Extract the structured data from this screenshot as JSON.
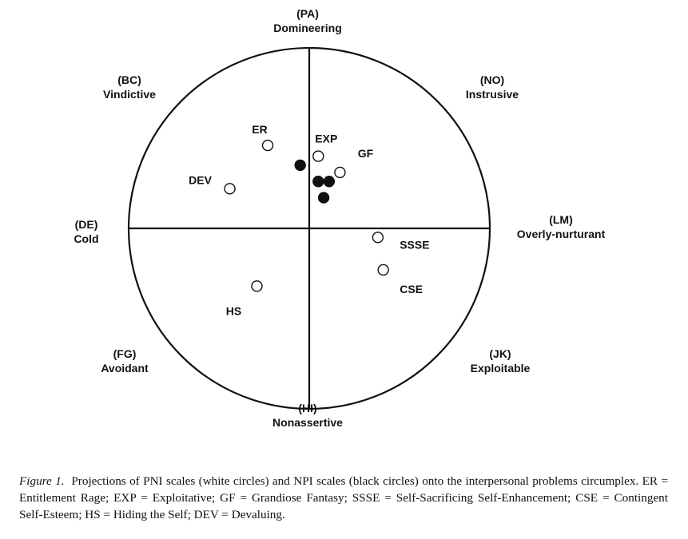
{
  "chart_data": {
    "type": "scatter",
    "title": "",
    "xlabel": "",
    "ylabel": "",
    "xlim": [
      -1,
      1
    ],
    "ylim": [
      -1,
      1
    ],
    "grid": false,
    "legend": "none",
    "octants": [
      {
        "code": "(PA)",
        "name": "Domineering"
      },
      {
        "code": "(NO)",
        "name": "Instrusive"
      },
      {
        "code": "(LM)",
        "name": "Overly-nurturant"
      },
      {
        "code": "(JK)",
        "name": "Exploitable"
      },
      {
        "code": "(HI)",
        "name": "Nonassertive"
      },
      {
        "code": "(FG)",
        "name": "Avoidant"
      },
      {
        "code": "(DE)",
        "name": "Cold"
      },
      {
        "code": "(BC)",
        "name": "Vindictive"
      }
    ],
    "series": [
      {
        "fill": "white",
        "points": [
          {
            "label": "ER",
            "x": -0.23,
            "y": 0.46
          },
          {
            "label": "EXP",
            "x": 0.05,
            "y": 0.4
          },
          {
            "label": "GF",
            "x": 0.17,
            "y": 0.31
          },
          {
            "label": "DEV",
            "x": -0.44,
            "y": 0.22
          },
          {
            "label": "SSSE",
            "x": 0.38,
            "y": -0.05
          },
          {
            "label": "CSE",
            "x": 0.41,
            "y": -0.23
          },
          {
            "label": "HS",
            "x": -0.29,
            "y": -0.32
          }
        ]
      },
      {
        "fill": "black",
        "points": [
          {
            "label": "",
            "x": -0.05,
            "y": 0.35
          },
          {
            "label": "",
            "x": 0.05,
            "y": 0.26
          },
          {
            "label": "",
            "x": 0.11,
            "y": 0.26
          },
          {
            "label": "",
            "x": 0.08,
            "y": 0.17
          }
        ]
      }
    ]
  },
  "caption": {
    "label": "Figure 1.",
    "text": "Projections of PNI scales (white circles) and NPI scales (black circles) onto the interpersonal problems circumplex. ER = Entitlement Rage; EXP = Exploitative; GF = Grandiose Fantasy; SSSE = Self-Sacrificing Self-Enhancement; CSE = Contingent Self-Esteem; HS = Hiding the Self; DEV = Devaluing."
  }
}
